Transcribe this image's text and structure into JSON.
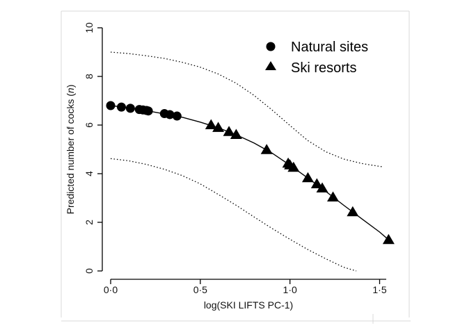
{
  "chart_data": {
    "type": "scatter",
    "title": "",
    "xlabel": "log(SKI LIFTS PC-1)",
    "ylabel_parts": [
      "Predicted number of cocks (",
      "n",
      ")"
    ],
    "xlim": [
      -0.03,
      1.57
    ],
    "ylim": [
      0,
      10
    ],
    "x_ticks": [
      0,
      0.5,
      1,
      1.5
    ],
    "x_tick_labels": [
      "0·0",
      "0·5",
      "1·0",
      "1·5"
    ],
    "y_ticks": [
      0,
      2,
      4,
      6,
      8,
      10
    ],
    "y_tick_labels": [
      "0",
      "2",
      "4",
      "6",
      "8",
      "10"
    ],
    "legend_position": "top-right",
    "series": [
      {
        "name": "Natural sites",
        "marker": "circle",
        "points": [
          [
            0.0,
            6.8
          ],
          [
            0.06,
            6.74
          ],
          [
            0.11,
            6.69
          ],
          [
            0.16,
            6.64
          ],
          [
            0.18,
            6.62
          ],
          [
            0.2,
            6.6
          ],
          [
            0.21,
            6.58
          ],
          [
            0.3,
            6.47
          ],
          [
            0.33,
            6.43
          ],
          [
            0.37,
            6.37
          ]
        ]
      },
      {
        "name": "Ski resorts",
        "marker": "triangle",
        "points": [
          [
            0.56,
            6.0
          ],
          [
            0.6,
            5.89
          ],
          [
            0.66,
            5.72
          ],
          [
            0.7,
            5.6
          ],
          [
            0.87,
            4.98
          ],
          [
            0.99,
            4.42
          ],
          [
            1.0,
            4.35
          ],
          [
            1.02,
            4.25
          ],
          [
            1.1,
            3.82
          ],
          [
            1.15,
            3.57
          ],
          [
            1.18,
            3.4
          ],
          [
            1.24,
            3.03
          ],
          [
            1.35,
            2.42
          ],
          [
            1.55,
            1.28
          ]
        ]
      }
    ],
    "fit_curve": {
      "x": [
        0.0,
        0.1,
        0.2,
        0.3,
        0.4,
        0.5,
        0.6,
        0.7,
        0.8,
        0.9,
        1.0,
        1.1,
        1.2,
        1.3,
        1.4,
        1.5,
        1.55
      ],
      "y": [
        6.8,
        6.71,
        6.59,
        6.46,
        6.32,
        6.12,
        5.89,
        5.6,
        5.26,
        4.85,
        4.35,
        3.82,
        3.27,
        2.7,
        2.15,
        1.6,
        1.28
      ]
    },
    "confidence_upper": {
      "x": [
        0.0,
        0.1,
        0.2,
        0.3,
        0.4,
        0.5,
        0.6,
        0.7,
        0.8,
        0.9,
        1.0,
        1.1,
        1.2,
        1.3,
        1.4,
        1.5,
        1.52
      ],
      "y": [
        9.0,
        8.94,
        8.85,
        8.74,
        8.58,
        8.38,
        8.1,
        7.72,
        7.22,
        6.62,
        5.98,
        5.36,
        4.9,
        4.6,
        4.42,
        4.3,
        4.28
      ]
    },
    "confidence_lower": {
      "x": [
        0.0,
        0.1,
        0.2,
        0.3,
        0.4,
        0.5,
        0.6,
        0.7,
        0.8,
        0.9,
        1.0,
        1.1,
        1.2,
        1.3,
        1.37
      ],
      "y": [
        4.62,
        4.53,
        4.38,
        4.18,
        3.92,
        3.58,
        3.15,
        2.7,
        2.22,
        1.75,
        1.3,
        0.88,
        0.5,
        0.15,
        0.0
      ]
    }
  }
}
